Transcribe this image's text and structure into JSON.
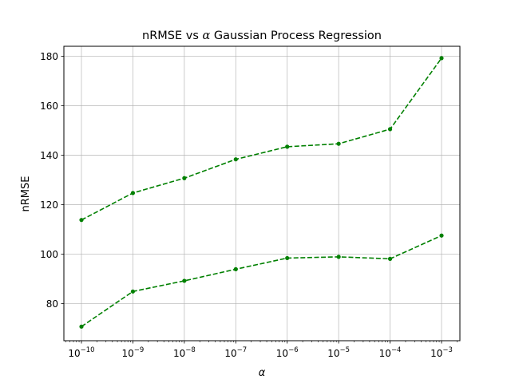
{
  "chart_data": {
    "type": "line",
    "title": "nRMSE vs α Gaussian Process Regression",
    "title_parts": {
      "before": "nRMSE vs ",
      "symbol": "α",
      "after": " Gaussian Process Regression"
    },
    "xlabel": "α",
    "ylabel": "nRMSE",
    "x_scale": "log",
    "x": [
      1e-10,
      1e-09,
      1e-08,
      1e-07,
      1e-06,
      1e-05,
      0.0001,
      0.001
    ],
    "xtick_labels": [
      {
        "base": "10",
        "exp": "−10"
      },
      {
        "base": "10",
        "exp": "−9"
      },
      {
        "base": "10",
        "exp": "−8"
      },
      {
        "base": "10",
        "exp": "−7"
      },
      {
        "base": "10",
        "exp": "−6"
      },
      {
        "base": "10",
        "exp": "−5"
      },
      {
        "base": "10",
        "exp": "−4"
      },
      {
        "base": "10",
        "exp": "−3"
      }
    ],
    "yticks": [
      80,
      100,
      120,
      140,
      160,
      180
    ],
    "ytick_labels": [
      "80",
      "100",
      "120",
      "140",
      "160",
      "180"
    ],
    "ylim": [
      65,
      184
    ],
    "grid": true,
    "series": [
      {
        "values": [
          113.8,
          124.7,
          130.7,
          138.3,
          143.4,
          144.6,
          150.5,
          179.2
        ],
        "color": "#008000",
        "style": "dashed",
        "marker": "circle"
      },
      {
        "values": [
          70.7,
          84.9,
          89.2,
          93.9,
          98.4,
          98.9,
          98.1,
          107.5
        ],
        "color": "#008000",
        "style": "dashed",
        "marker": "circle"
      }
    ]
  }
}
